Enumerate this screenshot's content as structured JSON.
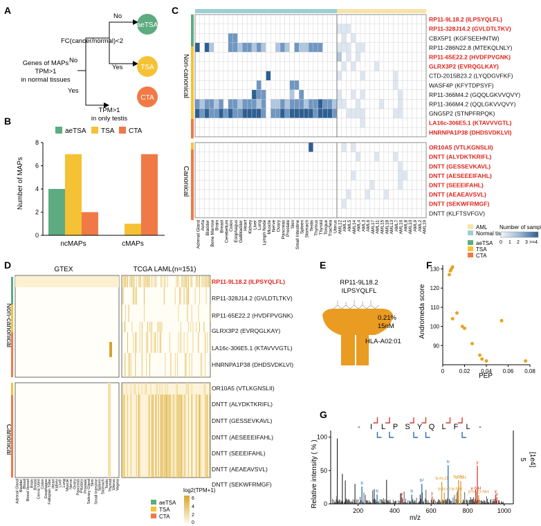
{
  "panel_letters": {
    "a": "A",
    "b": "B",
    "c": "C",
    "d": "D",
    "e": "E",
    "f": "F",
    "g": "G"
  },
  "panel_a": {
    "genes_text": [
      "Genes of MAPs",
      "TPM>1",
      "in normal tissues"
    ],
    "fc_text": "FC(cancer/normal)<2",
    "no_top": "No",
    "no_mid": "No",
    "yes_mid": "Yes",
    "yes_low": "Yes",
    "testis_text": [
      "TPM>1",
      "in only testis"
    ],
    "aetsa": "aeTSA",
    "tsa": "TSA",
    "cta": "CTA",
    "colors": {
      "aeTSA": "#5dab80",
      "TSA": "#f5c235",
      "CTA": "#f07a45"
    }
  },
  "chart_data": [
    {
      "type": "bar",
      "categories": [
        "ncMAPs",
        "cMAPs"
      ],
      "series": [
        {
          "name": "aeTSA",
          "values": [
            4,
            0
          ]
        },
        {
          "name": "TSA",
          "values": [
            7,
            1
          ]
        },
        {
          "name": "CTA",
          "values": [
            2,
            7
          ]
        }
      ],
      "ylabel": "Number of MAPs",
      "ylim": [
        0,
        8
      ],
      "yticks": [
        "0",
        "2",
        "4",
        "6",
        "8"
      ],
      "legend": "top"
    },
    {
      "type": "scatter",
      "xlabel": "PEP",
      "ylabel": "Andromeda score",
      "xlim": [
        0,
        0.08
      ],
      "ylim": [
        80,
        132
      ],
      "xticks": [
        "0",
        "0.02",
        "0.04",
        "0.06",
        "0.08"
      ],
      "yticks": [
        "90",
        "100",
        "110",
        "120",
        "130"
      ],
      "points": [
        [
          0.006,
          127
        ],
        [
          0.007,
          129
        ],
        [
          0.008,
          130
        ],
        [
          0.009,
          131
        ],
        [
          0.009,
          104
        ],
        [
          0.013,
          107
        ],
        [
          0.018,
          100
        ],
        [
          0.02,
          99
        ],
        [
          0.027,
          91
        ],
        [
          0.034,
          85
        ],
        [
          0.036,
          83
        ],
        [
          0.04,
          82
        ],
        [
          0.054,
          103
        ],
        [
          0.076,
          82
        ]
      ]
    }
  ],
  "panel_c": {
    "group_noncanonical": "Non-canonical",
    "group_canonical": "Canonical",
    "rows_noncanonical": [
      {
        "label": "RP11-9L18.2 (ILPSYQLFL)",
        "red": true
      },
      {
        "label": "RP11-328J14.2 (GVLDTLTKV)",
        "red": true
      },
      {
        "label": "CBX5P1 (KGFSEEHNTW)",
        "red": false
      },
      {
        "label": "RP11-286N22.8 (MTEKQLNLY)",
        "red": false
      },
      {
        "label": "RP11-65E22.2 (HVDFPVGNK)",
        "red": true
      },
      {
        "label": "GLRX3P2 (EVRQGLKAY)",
        "red": true
      },
      {
        "label": "CTD-2015B23.2 (LYQDGVFKF)",
        "red": false
      },
      {
        "label": "WASF4P (KFYTDPSYF)",
        "red": false
      },
      {
        "label": "RP11-366M4.2 (GQQLGKVVQVY)",
        "red": false
      },
      {
        "label": "RP11-366M4.2 (QQLGKVVQVY)",
        "red": false
      },
      {
        "label": "GNG5P2 (STNPFRPQK)",
        "red": false
      },
      {
        "label": "LA16c-306E5.1 (KTAVVVGTL)",
        "red": true
      },
      {
        "label": "HNRNPA1P38 (DHDSVDKLVI)",
        "red": true
      }
    ],
    "rows_canonical": [
      {
        "label": "OR10A5 (VTLKGNSLII)",
        "red": true
      },
      {
        "label": "DNTT (ALYDKTKRIFL)",
        "red": true
      },
      {
        "label": "DNTT (GESSEVKAVL)",
        "red": true
      },
      {
        "label": "DNTT (AESEEEIFAHL)",
        "red": true
      },
      {
        "label": "DNTT (SEEEIFAHL)",
        "red": true
      },
      {
        "label": "DNTT (AEAEAVSVL)",
        "red": true
      },
      {
        "label": "DNTT (SEKWFRMGF)",
        "red": true
      },
      {
        "label": "DNTT (KLFTSVFGV)",
        "red": false
      }
    ],
    "tissues": [
      "Adrenal Gland",
      "Aorta",
      "Bladder",
      "Bone Marrow",
      "Brain",
      "Breast",
      "Cerebellum",
      "Colon",
      "Esophagus",
      "Gallbladder",
      "Heart",
      "Kidney",
      "Liver",
      "Lung",
      "Lymph Node",
      "Muscle",
      "Nerve",
      "Ovary",
      "Pancreas",
      "Prostate",
      "Skin",
      "Small Intestine",
      "Spleen",
      "Stomach",
      "Testis",
      "Thymus",
      "Thyroid",
      "Tongue",
      "Trachea",
      "Uterus"
    ],
    "aml": [
      "AML12",
      "AML1",
      "AML5",
      "AML14",
      "AML4",
      "AML3",
      "AML6",
      "AML17",
      "AML11",
      "AML15",
      "AML18",
      "AML13",
      "AML7",
      "AML16",
      "AML8",
      "AML10",
      "AML9",
      "AML2",
      "AML19"
    ],
    "legend_aml": "AML",
    "legend_normal": "Normal tissue",
    "legend_aetsa": "aeTSA",
    "legend_tsa": "TSA",
    "legend_cta": "CTA",
    "legend_samples_title": "Number of samples",
    "legend_samples_ticks": [
      "0",
      "1",
      "2",
      "3",
      ">=4"
    ]
  },
  "panel_d": {
    "col_gtex": "GTEX",
    "col_tcga": "TCGA LAML(n=151)",
    "group_noncanonical": "Non-canonical",
    "group_canonical": "Canonical",
    "rows_noncanonical": [
      {
        "label": "RP11-9L18.2 (ILPSYQLFL)",
        "red": true
      },
      {
        "label": "RP11-328J14.2 (GVLDTLTKV)",
        "red": false
      },
      {
        "label": "RP11-65E22.2 (HVDFPVGNK)",
        "red": false
      },
      {
        "label": "GLRX3P2 (EVRQGLKAY)",
        "red": false
      },
      {
        "label": "LA16c-306E5.1 (KTAVVVGTL)",
        "red": false
      },
      {
        "label": "HNRNPA1P38 (DHDSVDKLVI)",
        "red": false
      }
    ],
    "rows_canonical": [
      {
        "label": "OR10A5 (VTLKGNSLII)",
        "red": false
      },
      {
        "label": "DNTT (ALYDKTKRIFL)",
        "red": false
      },
      {
        "label": "DNTT (GESSEVKAVL)",
        "red": false
      },
      {
        "label": "DNTT (AESEEEIFAHL)",
        "red": false
      },
      {
        "label": "DNTT (SEEEIFAHL)",
        "red": false
      },
      {
        "label": "DNTT (AEAEAVSVL)",
        "red": false
      },
      {
        "label": "DNTT (SEKWFRMGF)",
        "red": false
      }
    ],
    "tissues": [
      "Adrenal Gland",
      "Bladder",
      "Blood",
      "Blood Vessel",
      "Brain",
      "Breast",
      "Cervix Uteri",
      "Colon",
      "Esophagus",
      "Fallopian Tube",
      "Heart",
      "Kidney",
      "Liver",
      "Lung",
      "Muscle",
      "Nerve",
      "Ovary",
      "Pancreas",
      "Pituitary",
      "Prostate",
      "Salivary Gland",
      "Skin",
      "Small Intestine",
      "Spleen",
      "Stomach",
      "Testis",
      "Thyroid",
      "Uterus",
      "Vagina"
    ],
    "legend_aetsa": "aeTSA",
    "legend_tsa": "TSA",
    "legend_cta": "CTA",
    "scale_title": "log2(TPM+1)",
    "scale_ticks": [
      "6",
      "4",
      "2",
      "0"
    ]
  },
  "panel_e": {
    "gene": "RP11-9L18.2",
    "peptide": "ILPSYQLFL",
    "percent": "0.21%",
    "affinity": "15nM",
    "hla": "HLA-A02:01"
  },
  "panel_g": {
    "sequence": [
      "-",
      "I",
      "L",
      "P",
      "S",
      "Y",
      "Q",
      "L",
      "F",
      "L",
      "-"
    ],
    "xlabel": "m/z",
    "ylabel": "Relative intensity ( % )",
    "right_label": "[1e4]",
    "right_value": "5",
    "xticks": [
      "200",
      "400",
      "600",
      "800",
      "1000"
    ],
    "yticks": [
      "0",
      "50",
      "100"
    ],
    "annotations": [
      "b",
      "b",
      "b",
      "b²",
      "b-H₂O",
      "b-NH",
      "b-NH",
      "b",
      "y",
      "y",
      "y",
      "y",
      "y-NH",
      "b-H₂O",
      "b-H₂O-NH",
      "y",
      "b-NH"
    ]
  }
}
